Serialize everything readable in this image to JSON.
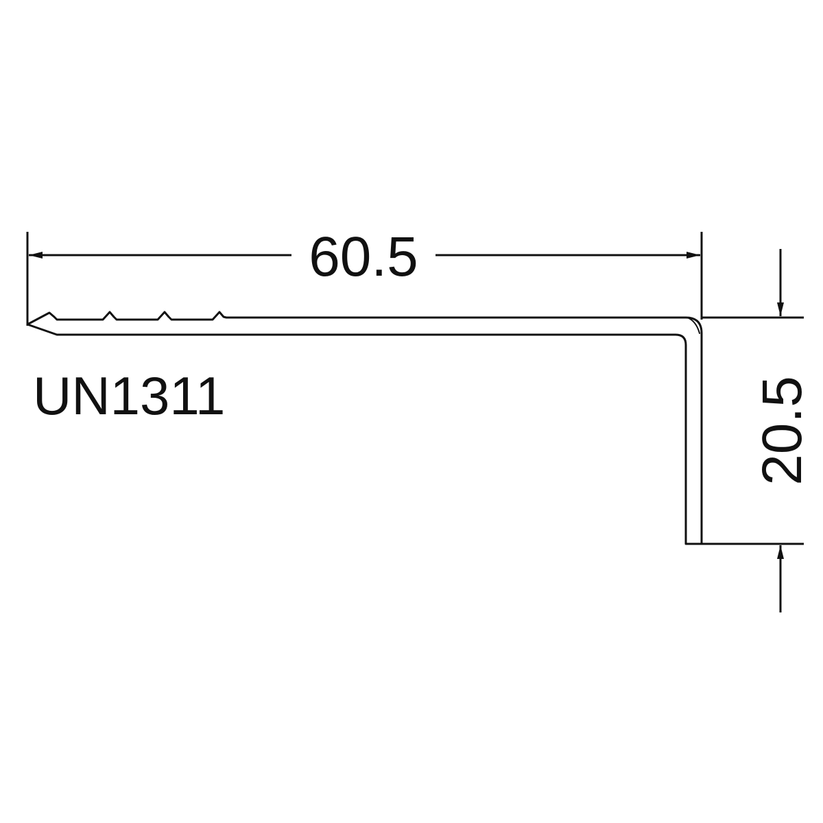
{
  "drawing": {
    "part_code": "UN1311",
    "width_dimension": "60.5",
    "height_dimension": "20.5"
  },
  "colors": {
    "line": "#111111",
    "background": "#ffffff"
  }
}
